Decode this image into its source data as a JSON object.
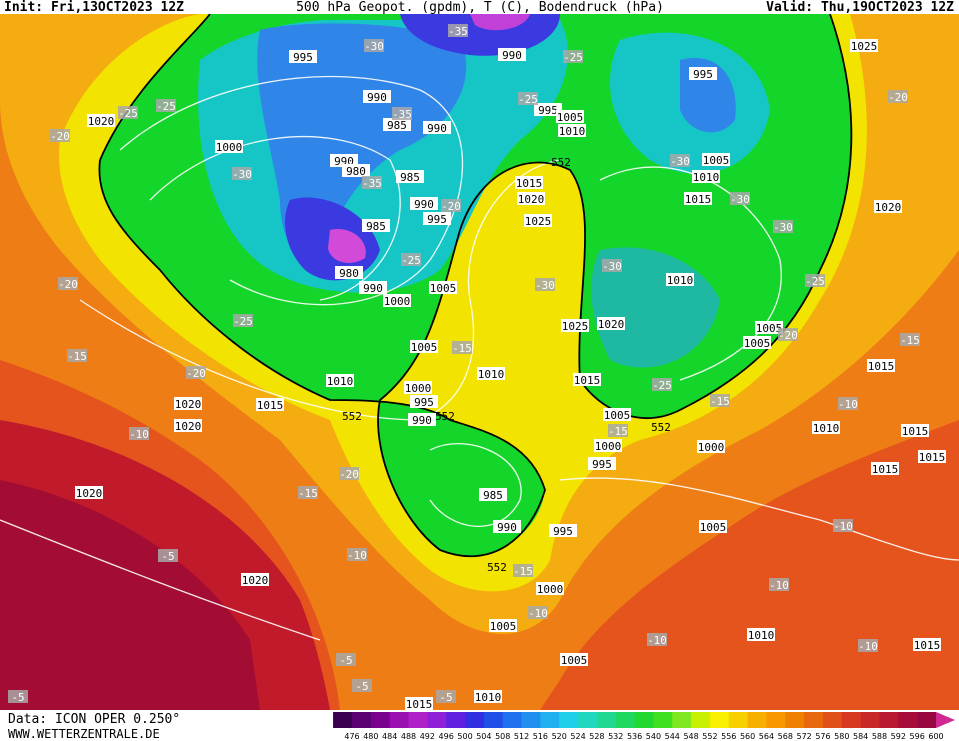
{
  "header": {
    "init": "Init: Fri,13OCT2023 12Z",
    "title": "500 hPa Geopot. (gpdm), T (C), Bodendruck (hPa)",
    "valid": "Valid: Thu,19OCT2023 12Z"
  },
  "footer": {
    "data": "Data: ICON OPER 0.250°",
    "site": "WWW.WETTERZENTRALE.DE"
  },
  "colorbar": [
    476,
    480,
    484,
    488,
    492,
    496,
    500,
    504,
    508,
    512,
    516,
    520,
    524,
    528,
    532,
    536,
    540,
    544,
    548,
    552,
    556,
    560,
    564,
    568,
    572,
    576,
    580,
    584,
    588,
    592,
    596,
    600
  ],
  "isobar_labels": [
    995,
    990,
    1025,
    995,
    1020,
    990,
    985,
    990,
    995,
    1005,
    1010,
    1000,
    990,
    980,
    985,
    1005,
    1010,
    1015,
    1020,
    990,
    995,
    1015,
    1020,
    1025,
    985,
    980,
    990,
    1000,
    1005,
    1010,
    1025,
    1020,
    1005,
    1005,
    1005,
    1010,
    1015,
    1010,
    1000,
    995,
    990,
    1015,
    1020,
    1015,
    1005,
    1020,
    1010,
    1015,
    1000,
    1000,
    1015,
    995,
    1015,
    1020,
    985,
    990,
    995,
    1005,
    1020,
    1000,
    1005,
    1010,
    1005,
    1015,
    1010,
    1015
  ],
  "temperature_labels": [
    -30,
    -35,
    -25,
    -25,
    -25,
    -20,
    -20,
    -25,
    -35,
    -30,
    -35,
    -30,
    -30,
    -20,
    -30,
    -25,
    -30,
    -30,
    -25,
    -20,
    -25,
    -15,
    -15,
    -20,
    -15,
    -20,
    -25,
    -15,
    -10,
    -15,
    -10,
    -20,
    -15,
    -10,
    -5,
    -10,
    -15,
    -10,
    -10,
    -10,
    -10,
    -5,
    -5,
    -5,
    -5
  ],
  "height_labels": [
    552,
    552,
    552,
    552,
    552
  ]
}
